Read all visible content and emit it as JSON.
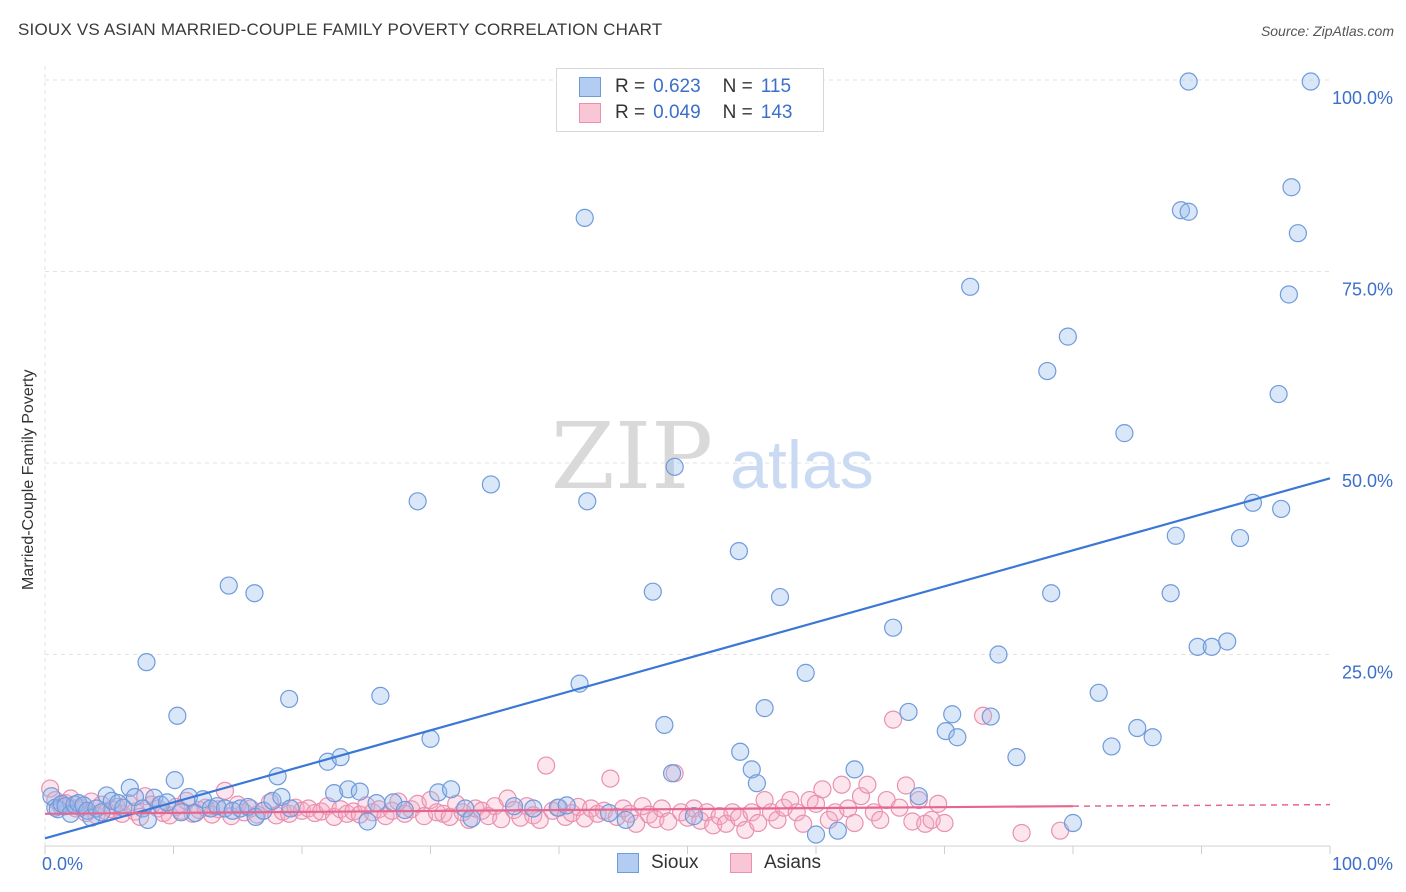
{
  "header": {
    "title": "SIOUX VS ASIAN MARRIED-COUPLE FAMILY POVERTY CORRELATION CHART",
    "source": "Source: ZipAtlas.com"
  },
  "watermark": {
    "zip": "ZIP",
    "atlas": "atlas"
  },
  "legend": {
    "rows": [
      {
        "r_label": "R =",
        "r_value": "0.623",
        "n_label": "N =",
        "n_value": "115",
        "color": "#a9c6f0",
        "border": "#5b8fd6"
      },
      {
        "r_label": "R =",
        "r_value": "0.049",
        "n_label": "N =",
        "n_value": "143",
        "color": "#f7b8cb",
        "border": "#e57fa0"
      }
    ]
  },
  "bottom_legend": {
    "sioux": "Sioux",
    "asians": "Asians"
  },
  "colors": {
    "sioux_fill": "rgba(150,185,235,0.35)",
    "sioux_stroke": "#6f9bdc",
    "sioux_line": "#3b78d6",
    "asian_fill": "rgba(245,170,195,0.30)",
    "asian_stroke": "#e991b0",
    "asian_line": "#e6668f",
    "axis_text": "#3b6fc9",
    "grid": "#e2e2e2"
  },
  "chart_data": {
    "type": "scatter",
    "title": "SIOUX VS ASIAN MARRIED-COUPLE FAMILY POVERTY CORRELATION CHART",
    "xlabel": "",
    "ylabel": "Married-Couple Family Poverty",
    "xlim": [
      0,
      100
    ],
    "ylim": [
      0,
      100
    ],
    "x_tick_labels": [
      "0.0%",
      "100.0%"
    ],
    "y_ticks": [
      25,
      50,
      75,
      100
    ],
    "y_tick_labels": [
      "25.0%",
      "50.0%",
      "75.0%",
      "100.0%"
    ],
    "series": [
      {
        "name": "Sioux",
        "r": 0.623,
        "n": 115,
        "trend": {
          "x": [
            0,
            100
          ],
          "y": [
            1.0,
            48.0
          ]
        },
        "points": [
          [
            0.5,
            6.5
          ],
          [
            0.8,
            5.0
          ],
          [
            1.0,
            4.8
          ],
          [
            1.3,
            5.5
          ],
          [
            1.6,
            5.2
          ],
          [
            2.0,
            4.2
          ],
          [
            2.3,
            5.4
          ],
          [
            2.6,
            5.6
          ],
          [
            3.0,
            5.3
          ],
          [
            3.3,
            4.6
          ],
          [
            3.6,
            3.7
          ],
          [
            4.0,
            4.9
          ],
          [
            4.4,
            4.4
          ],
          [
            4.8,
            6.6
          ],
          [
            5.2,
            5.9
          ],
          [
            5.7,
            5.6
          ],
          [
            6.1,
            5.0
          ],
          [
            6.6,
            7.6
          ],
          [
            7.0,
            6.4
          ],
          [
            7.6,
            4.9
          ],
          [
            8.0,
            3.4
          ],
          [
            8.5,
            6.3
          ],
          [
            9.0,
            5.4
          ],
          [
            9.5,
            5.7
          ],
          [
            10.1,
            8.6
          ],
          [
            10.6,
            4.4
          ],
          [
            11.2,
            6.4
          ],
          [
            11.7,
            4.3
          ],
          [
            12.3,
            6.1
          ],
          [
            12.9,
            4.9
          ],
          [
            13.4,
            5.2
          ],
          [
            14.0,
            4.9
          ],
          [
            14.6,
            4.6
          ],
          [
            15.2,
            4.9
          ],
          [
            15.8,
            5.1
          ],
          [
            16.4,
            3.8
          ],
          [
            17.0,
            4.6
          ],
          [
            17.7,
            5.9
          ],
          [
            18.4,
            6.4
          ],
          [
            19.1,
            4.9
          ],
          [
            14.3,
            34.0
          ],
          [
            16.3,
            33.0
          ],
          [
            19.0,
            19.2
          ],
          [
            7.9,
            24.0
          ],
          [
            10.3,
            17.0
          ],
          [
            18.1,
            9.1
          ],
          [
            22.0,
            11.0
          ],
          [
            22.5,
            6.9
          ],
          [
            23.0,
            11.6
          ],
          [
            23.6,
            7.4
          ],
          [
            24.5,
            7.1
          ],
          [
            25.1,
            3.2
          ],
          [
            25.8,
            5.6
          ],
          [
            26.1,
            19.6
          ],
          [
            27.1,
            5.7
          ],
          [
            28.0,
            4.7
          ],
          [
            29.0,
            45.0
          ],
          [
            30.0,
            14.0
          ],
          [
            30.6,
            7.0
          ],
          [
            31.6,
            7.4
          ],
          [
            32.7,
            4.9
          ],
          [
            33.2,
            3.6
          ],
          [
            34.7,
            47.2
          ],
          [
            36.5,
            5.2
          ],
          [
            38.0,
            4.9
          ],
          [
            39.9,
            5.0
          ],
          [
            40.6,
            5.3
          ],
          [
            41.6,
            21.2
          ],
          [
            42.0,
            82.0
          ],
          [
            42.2,
            45.0
          ],
          [
            43.9,
            4.3
          ],
          [
            45.2,
            3.4
          ],
          [
            47.3,
            33.2
          ],
          [
            48.2,
            15.8
          ],
          [
            48.8,
            9.5
          ],
          [
            49.0,
            49.5
          ],
          [
            50.5,
            3.9
          ],
          [
            54.0,
            38.5
          ],
          [
            54.1,
            12.3
          ],
          [
            55.0,
            10.0
          ],
          [
            55.4,
            8.2
          ],
          [
            56.0,
            18.0
          ],
          [
            57.2,
            32.5
          ],
          [
            59.2,
            22.6
          ],
          [
            60.0,
            1.5
          ],
          [
            61.7,
            2.0
          ],
          [
            63.0,
            10.0
          ],
          [
            66.0,
            28.5
          ],
          [
            67.2,
            17.5
          ],
          [
            68.0,
            6.5
          ],
          [
            70.1,
            15.0
          ],
          [
            70.6,
            17.2
          ],
          [
            71.0,
            14.2
          ],
          [
            72.0,
            73.0
          ],
          [
            73.6,
            16.9
          ],
          [
            74.2,
            25.0
          ],
          [
            75.6,
            11.6
          ],
          [
            78.0,
            62.0
          ],
          [
            78.3,
            33.0
          ],
          [
            79.6,
            66.5
          ],
          [
            80.0,
            3.0
          ],
          [
            82.0,
            20.0
          ],
          [
            83.0,
            13.0
          ],
          [
            84.0,
            53.9
          ],
          [
            85.0,
            15.4
          ],
          [
            86.2,
            14.2
          ],
          [
            87.6,
            33.0
          ],
          [
            88.0,
            40.5
          ],
          [
            88.4,
            83.0
          ],
          [
            89.0,
            99.8
          ],
          [
            89.0,
            82.8
          ],
          [
            89.7,
            26.0
          ],
          [
            90.8,
            26.0
          ],
          [
            92.0,
            26.7
          ],
          [
            93.0,
            40.2
          ],
          [
            94.0,
            44.8
          ],
          [
            96.0,
            59.0
          ],
          [
            96.2,
            44.0
          ],
          [
            96.8,
            72.0
          ],
          [
            97.0,
            86.0
          ],
          [
            97.5,
            80.0
          ],
          [
            98.5,
            99.8
          ]
        ]
      },
      {
        "name": "Asians",
        "r": 0.049,
        "n": 143,
        "trend": {
          "x": [
            0,
            80
          ],
          "y": [
            4.2,
            5.2
          ]
        },
        "trend_dashed": {
          "x": [
            80,
            100
          ],
          "y": [
            5.2,
            5.4
          ]
        },
        "points": [
          [
            0.4,
            7.5
          ],
          [
            0.8,
            6.0
          ],
          [
            1.2,
            5.3
          ],
          [
            1.6,
            5.6
          ],
          [
            2.0,
            6.2
          ],
          [
            2.4,
            4.9
          ],
          [
            2.8,
            5.0
          ],
          [
            3.2,
            4.3
          ],
          [
            3.6,
            5.8
          ],
          [
            4.0,
            4.0
          ],
          [
            4.4,
            5.4
          ],
          [
            4.8,
            4.5
          ],
          [
            5.2,
            4.8
          ],
          [
            5.6,
            5.1
          ],
          [
            6.0,
            4.2
          ],
          [
            6.5,
            5.6
          ],
          [
            7.0,
            4.5
          ],
          [
            7.4,
            3.8
          ],
          [
            7.8,
            6.5
          ],
          [
            8.3,
            5.4
          ],
          [
            8.8,
            4.9
          ],
          [
            9.2,
            4.3
          ],
          [
            9.7,
            4.0
          ],
          [
            10.2,
            5.1
          ],
          [
            10.6,
            4.6
          ],
          [
            11.0,
            5.9
          ],
          [
            11.5,
            4.2
          ],
          [
            12.0,
            4.7
          ],
          [
            12.5,
            5.0
          ],
          [
            13.0,
            4.1
          ],
          [
            13.5,
            4.8
          ],
          [
            14.0,
            7.2
          ],
          [
            14.5,
            3.9
          ],
          [
            15.0,
            5.4
          ],
          [
            15.5,
            4.4
          ],
          [
            16.0,
            4.9
          ],
          [
            16.5,
            4.1
          ],
          [
            17.0,
            4.6
          ],
          [
            17.5,
            5.7
          ],
          [
            18.0,
            4.0
          ],
          [
            18.5,
            4.5
          ],
          [
            19.0,
            4.2
          ],
          [
            19.5,
            5.0
          ],
          [
            20.0,
            4.6
          ],
          [
            20.5,
            4.9
          ],
          [
            21.0,
            4.3
          ],
          [
            21.5,
            4.5
          ],
          [
            22.0,
            5.2
          ],
          [
            22.5,
            3.8
          ],
          [
            23.0,
            4.8
          ],
          [
            23.5,
            4.2
          ],
          [
            24.0,
            4.5
          ],
          [
            24.5,
            4.1
          ],
          [
            25.0,
            5.3
          ],
          [
            25.5,
            4.4
          ],
          [
            26.0,
            4.8
          ],
          [
            26.5,
            3.9
          ],
          [
            27.0,
            4.6
          ],
          [
            27.5,
            5.8
          ],
          [
            28.0,
            4.2
          ],
          [
            28.5,
            4.8
          ],
          [
            29.0,
            5.5
          ],
          [
            29.5,
            3.9
          ],
          [
            30.0,
            6.0
          ],
          [
            30.5,
            4.4
          ],
          [
            31.0,
            4.2
          ],
          [
            31.5,
            3.8
          ],
          [
            32.0,
            5.5
          ],
          [
            32.5,
            4.4
          ],
          [
            33.0,
            3.4
          ],
          [
            33.5,
            4.9
          ],
          [
            34.0,
            4.6
          ],
          [
            34.5,
            3.9
          ],
          [
            35.0,
            5.2
          ],
          [
            35.5,
            3.5
          ],
          [
            36.0,
            6.2
          ],
          [
            36.5,
            4.7
          ],
          [
            37.0,
            3.7
          ],
          [
            37.5,
            5.2
          ],
          [
            38.0,
            4.0
          ],
          [
            38.5,
            3.4
          ],
          [
            39.0,
            10.5
          ],
          [
            39.5,
            4.6
          ],
          [
            40.0,
            5.0
          ],
          [
            40.5,
            3.8
          ],
          [
            41.0,
            4.3
          ],
          [
            41.5,
            5.1
          ],
          [
            42.0,
            3.6
          ],
          [
            42.5,
            4.9
          ],
          [
            43.0,
            4.2
          ],
          [
            43.5,
            4.6
          ],
          [
            44.0,
            8.8
          ],
          [
            44.5,
            3.8
          ],
          [
            45.0,
            4.9
          ],
          [
            45.5,
            4.2
          ],
          [
            46.0,
            2.9
          ],
          [
            46.5,
            5.2
          ],
          [
            47.0,
            4.1
          ],
          [
            47.5,
            3.5
          ],
          [
            48.0,
            4.9
          ],
          [
            48.5,
            3.2
          ],
          [
            49.0,
            9.5
          ],
          [
            49.5,
            4.4
          ],
          [
            50.0,
            3.7
          ],
          [
            50.5,
            4.9
          ],
          [
            51.0,
            3.3
          ],
          [
            51.5,
            4.4
          ],
          [
            52.0,
            2.7
          ],
          [
            52.5,
            3.9
          ],
          [
            53.0,
            2.9
          ],
          [
            53.5,
            4.4
          ],
          [
            54.0,
            3.7
          ],
          [
            54.5,
            2.1
          ],
          [
            55.0,
            4.4
          ],
          [
            55.5,
            3.0
          ],
          [
            56.0,
            6.0
          ],
          [
            56.5,
            4.4
          ],
          [
            57.0,
            3.4
          ],
          [
            57.5,
            5.0
          ],
          [
            58.0,
            6.0
          ],
          [
            58.5,
            4.4
          ],
          [
            59.0,
            2.9
          ],
          [
            59.5,
            6.0
          ],
          [
            60.0,
            5.5
          ],
          [
            60.5,
            7.4
          ],
          [
            61.0,
            3.4
          ],
          [
            61.5,
            4.4
          ],
          [
            62.0,
            8.0
          ],
          [
            62.5,
            4.9
          ],
          [
            63.0,
            3.0
          ],
          [
            63.5,
            6.5
          ],
          [
            64.0,
            8.0
          ],
          [
            64.5,
            4.4
          ],
          [
            65.0,
            3.4
          ],
          [
            65.5,
            6.0
          ],
          [
            66.0,
            16.5
          ],
          [
            66.5,
            5.0
          ],
          [
            67.0,
            7.9
          ],
          [
            67.5,
            3.2
          ],
          [
            68.0,
            6.0
          ],
          [
            68.5,
            2.9
          ],
          [
            69.0,
            3.4
          ],
          [
            69.5,
            5.5
          ],
          [
            70.0,
            3.0
          ],
          [
            73.0,
            17.0
          ],
          [
            76.0,
            1.7
          ],
          [
            79.0,
            2.0
          ]
        ]
      }
    ]
  }
}
